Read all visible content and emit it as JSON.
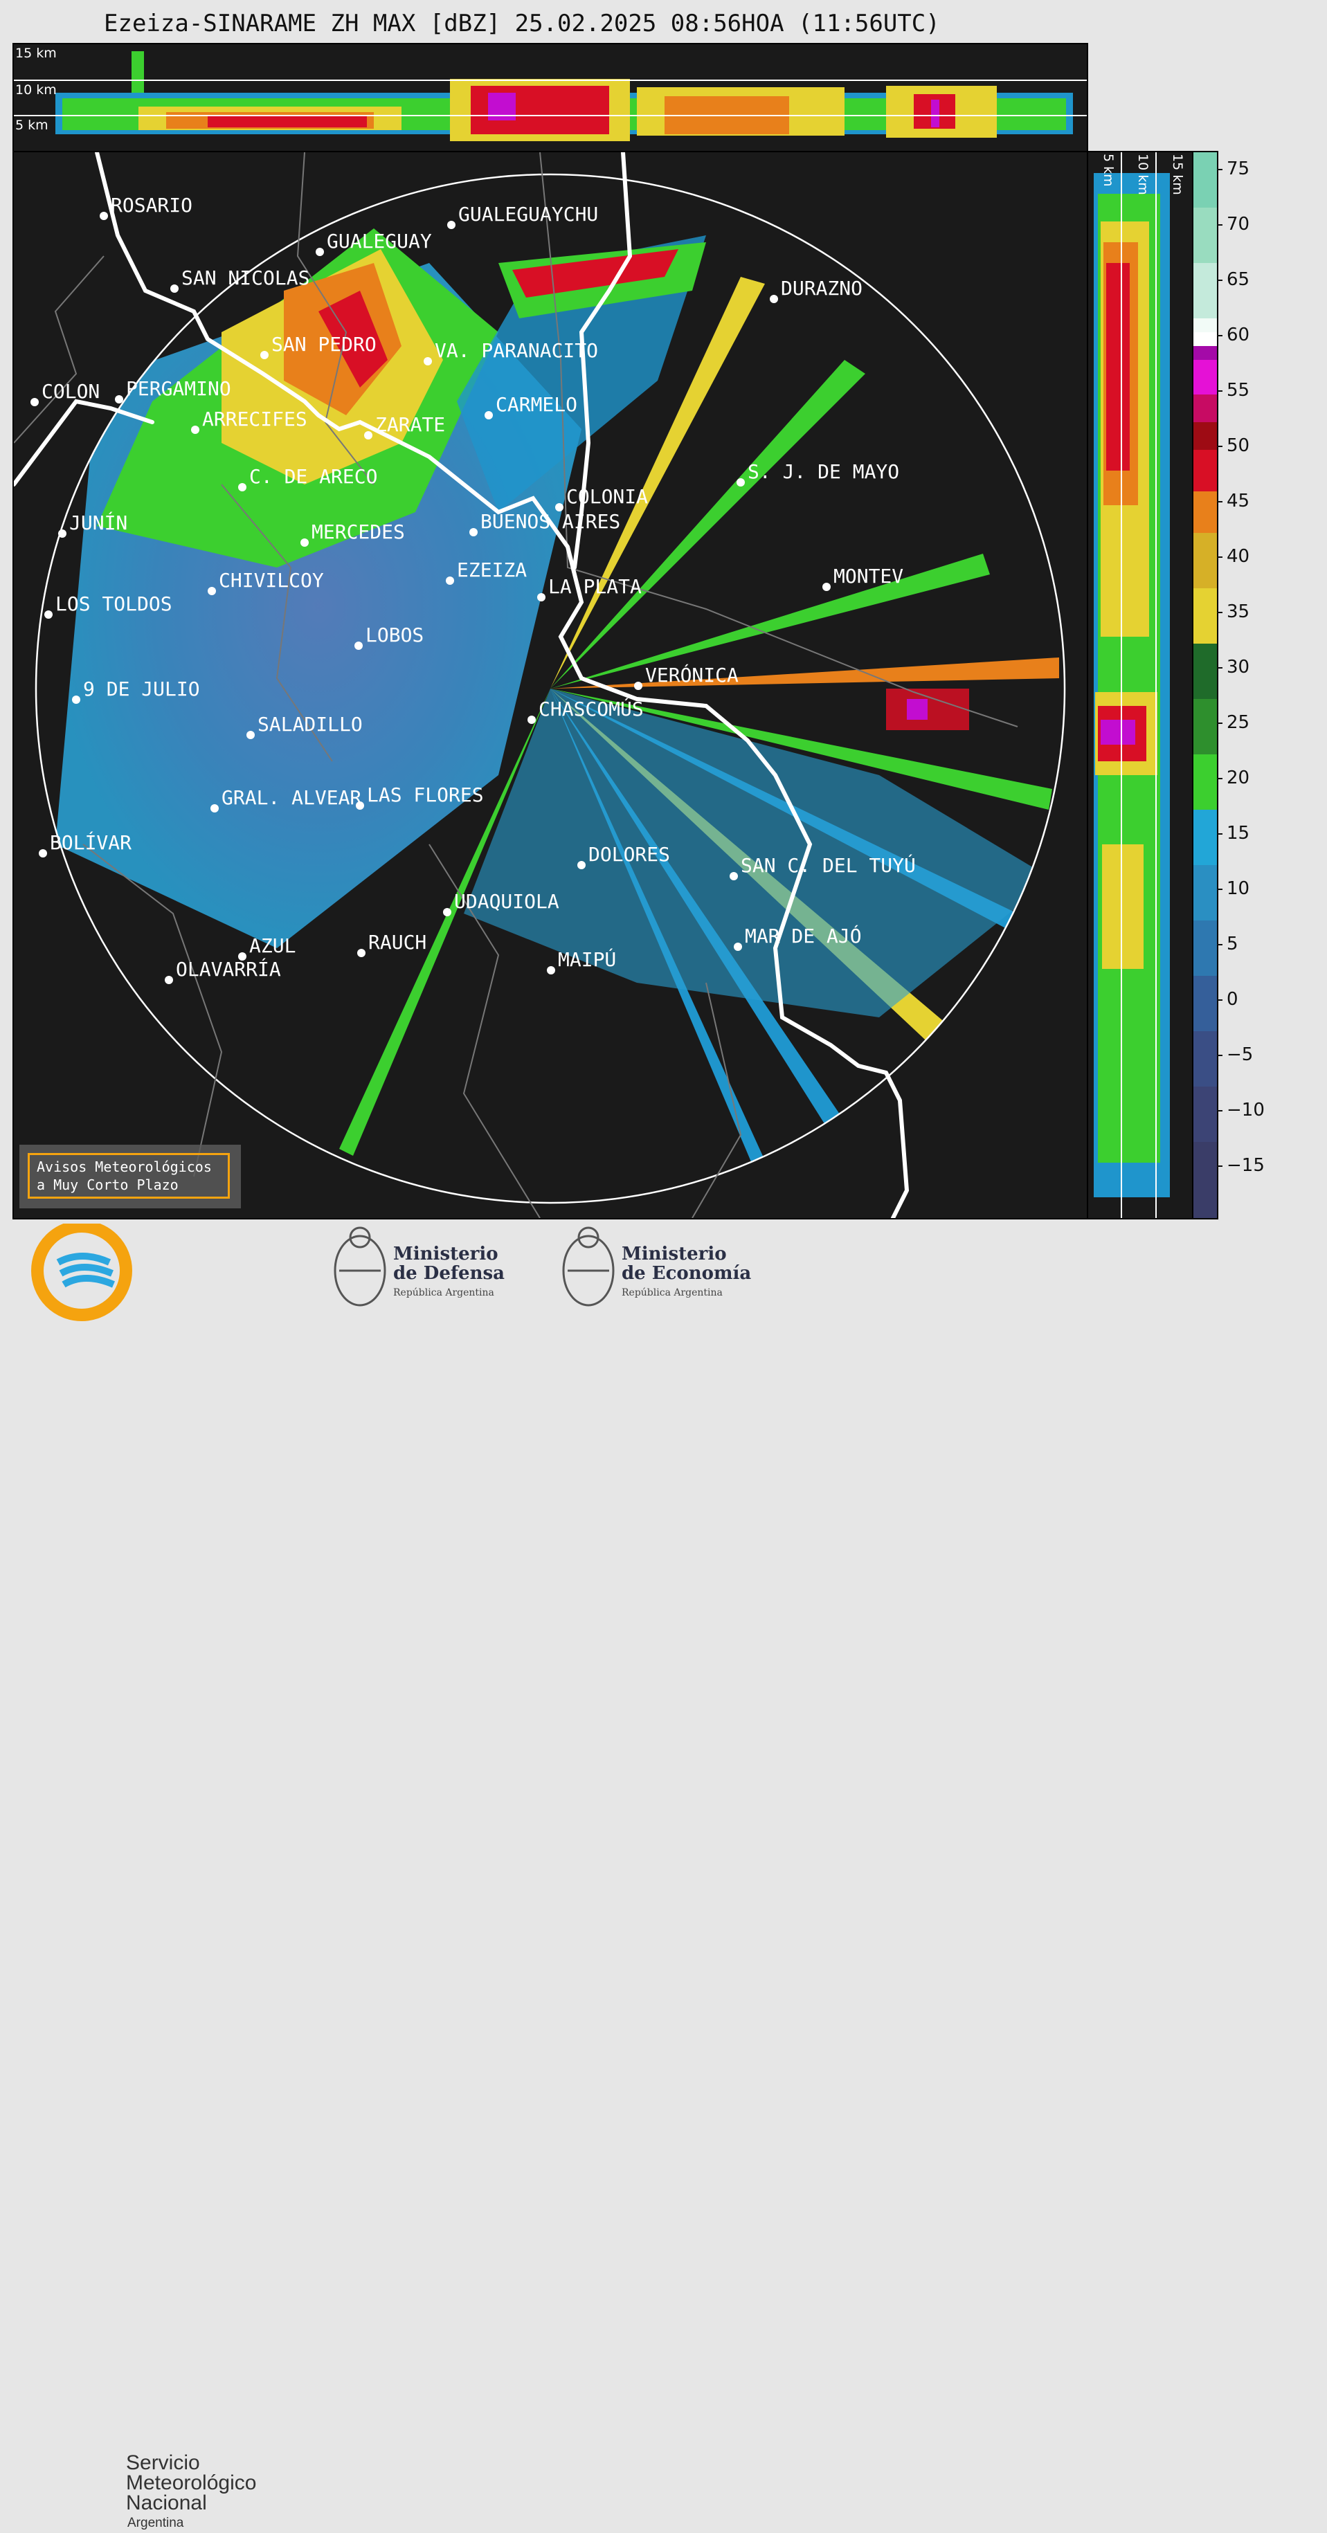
{
  "title": "Ezeiza-SINARAME ZH MAX [dBZ] 25.02.2025 08:56HOA (11:56UTC)",
  "altitude_labels": [
    "15 km",
    "10 km",
    "5 km"
  ],
  "side_altitude_labels": [
    "5 km",
    "10 km",
    "15 km"
  ],
  "colorbar": {
    "ticks": [
      "75",
      "70",
      "65",
      "60",
      "55",
      "50",
      "45",
      "40",
      "35",
      "30",
      "25",
      "20",
      "15",
      "10",
      "5",
      "0",
      "−5",
      "−10",
      "−15"
    ]
  },
  "cities": [
    {
      "id": "rosario",
      "name": "ROSARIO"
    },
    {
      "id": "gualeguaychu",
      "name": "GUALEGUAYCHU"
    },
    {
      "id": "gualeguay",
      "name": "GUALEGUAY"
    },
    {
      "id": "san-nicolas",
      "name": "SAN NICOLAS"
    },
    {
      "id": "durazno",
      "name": "DURAZNO"
    },
    {
      "id": "san-pedro",
      "name": "SAN PEDRO"
    },
    {
      "id": "va-paranacito",
      "name": "VA. PARANACITO"
    },
    {
      "id": "colon",
      "name": "COLON"
    },
    {
      "id": "pergamino",
      "name": "PERGAMINO"
    },
    {
      "id": "carmelo",
      "name": "CARMELO"
    },
    {
      "id": "arrecifes",
      "name": "ARRECIFES"
    },
    {
      "id": "zarate",
      "name": "ZARATE"
    },
    {
      "id": "sj-de-mayo",
      "name": "S. J. DE MAYO"
    },
    {
      "id": "c-de-areco",
      "name": "C. DE ARECO"
    },
    {
      "id": "colonia",
      "name": "COLONIA"
    },
    {
      "id": "junin",
      "name": "JUNÍN"
    },
    {
      "id": "buenos-aires",
      "name": "BUENOS AIRES"
    },
    {
      "id": "mercedes",
      "name": "MERCEDES"
    },
    {
      "id": "ezeiza",
      "name": "EZEIZA"
    },
    {
      "id": "montevideo",
      "name": "MONTEV"
    },
    {
      "id": "chivilcoy",
      "name": "CHIVILCOY"
    },
    {
      "id": "la-plata",
      "name": "LA PLATA"
    },
    {
      "id": "los-toldos",
      "name": "LOS TOLDOS"
    },
    {
      "id": "lobos",
      "name": "LOBOS"
    },
    {
      "id": "veronica",
      "name": "VERÓNICA"
    },
    {
      "id": "9-de-julio",
      "name": "9 DE JULIO"
    },
    {
      "id": "chascomus",
      "name": "CHASCOMÚS"
    },
    {
      "id": "saladillo",
      "name": "SALADILLO"
    },
    {
      "id": "gral-alvear",
      "name": "GRAL. ALVEAR"
    },
    {
      "id": "las-flores",
      "name": "LAS FLORES"
    },
    {
      "id": "bolivar",
      "name": "BOLÍVAR"
    },
    {
      "id": "dolores",
      "name": "DOLORES"
    },
    {
      "id": "san-c-del-tuyu",
      "name": "SAN C. DEL TUYÚ"
    },
    {
      "id": "udaquiola",
      "name": "UDAQUIOLA"
    },
    {
      "id": "mar-de-ajo",
      "name": "MAR DE AJÓ"
    },
    {
      "id": "azul",
      "name": "AZUL"
    },
    {
      "id": "rauch",
      "name": "RAUCH"
    },
    {
      "id": "olavarria",
      "name": "OLAVARRÍA"
    },
    {
      "id": "maipu",
      "name": "MAIPÚ"
    }
  ],
  "alert": {
    "line1": "Avisos Meteorológicos",
    "line2": "a Muy Corto Plazo"
  },
  "logos": {
    "smn": {
      "line1": "Servicio",
      "line2": "Meteorológico",
      "line3": "Nacional",
      "line4": "Argentina"
    },
    "defensa": {
      "line1": "Ministerio",
      "line2": "de Defensa",
      "line3": "República Argentina"
    },
    "economia": {
      "line1": "Ministerio",
      "line2": "de Economía",
      "line3": "República Argentina"
    }
  }
}
